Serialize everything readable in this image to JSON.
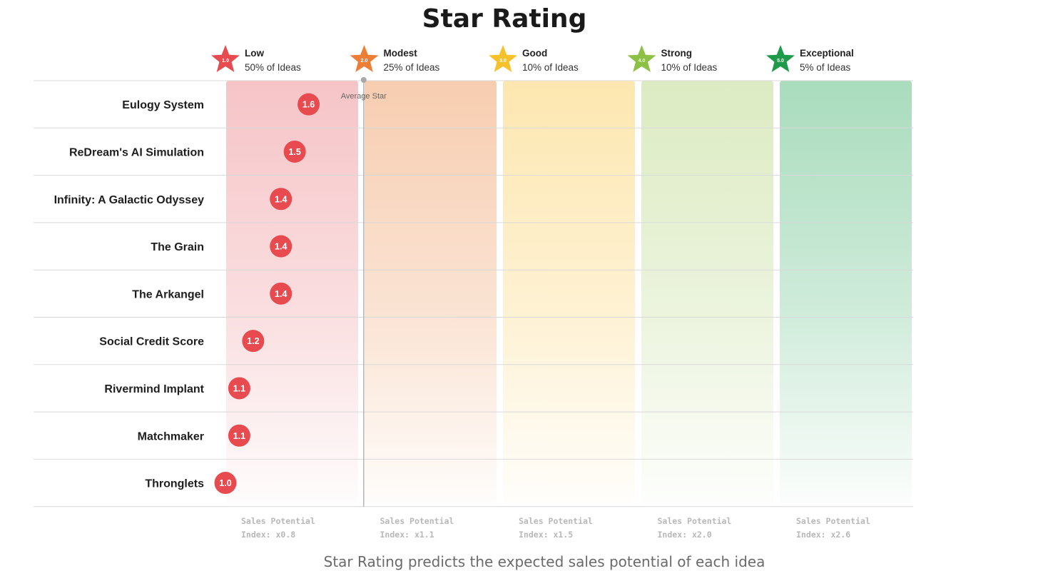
{
  "chart_data": {
    "type": "scatter",
    "title": "Star Rating",
    "caption": "Star Rating predicts the expected sales potential of each idea",
    "average_label": "Average Star",
    "average_value": 2.0,
    "bands": [
      {
        "star": "1.0",
        "name": "Low",
        "desc": "50% of Ideas",
        "footer_line1": "Sales Potential",
        "footer_line2": "Index: x0.8",
        "color": "#e84b4f"
      },
      {
        "star": "2.0",
        "name": "Modest",
        "desc": "25% of Ideas",
        "footer_line1": "Sales Potential",
        "footer_line2": "Index: x1.1",
        "color": "#ee7d36"
      },
      {
        "star": "3.0",
        "name": "Good",
        "desc": "10% of Ideas",
        "footer_line1": "Sales Potential",
        "footer_line2": "Index: x1.5",
        "color": "#f7c12b"
      },
      {
        "star": "4.0",
        "name": "Strong",
        "desc": "10% of Ideas",
        "footer_line1": "Sales Potential",
        "footer_line2": "Index: x2.0",
        "color": "#8dc145"
      },
      {
        "star": "5.0",
        "name": "Exceptional",
        "desc": "5% of Ideas",
        "footer_line1": "Sales Potential",
        "footer_line2": "Index: x2.6",
        "color": "#1f9a4b"
      }
    ],
    "band_fills": [
      "#f6c4c7",
      "#f7cdb0",
      "#fde7b0",
      "#dcebc2",
      "#a9dcbd"
    ],
    "items": [
      {
        "name": "Eulogy System",
        "value": 1.6,
        "label": "1.6"
      },
      {
        "name": "ReDream's AI Simulation",
        "value": 1.5,
        "label": "1.5"
      },
      {
        "name": "Infinity: A Galactic Odyssey",
        "value": 1.4,
        "label": "1.4"
      },
      {
        "name": "The Grain",
        "value": 1.4,
        "label": "1.4"
      },
      {
        "name": "The Arkangel",
        "value": 1.4,
        "label": "1.4"
      },
      {
        "name": "Social Credit Score",
        "value": 1.2,
        "label": "1.2"
      },
      {
        "name": "Rivermind Implant",
        "value": 1.1,
        "label": "1.1"
      },
      {
        "name": "Matchmaker",
        "value": 1.1,
        "label": "1.1"
      },
      {
        "name": "Thronglets",
        "value": 1.0,
        "label": "1.0"
      }
    ],
    "marker_color": "#e84b4f"
  }
}
